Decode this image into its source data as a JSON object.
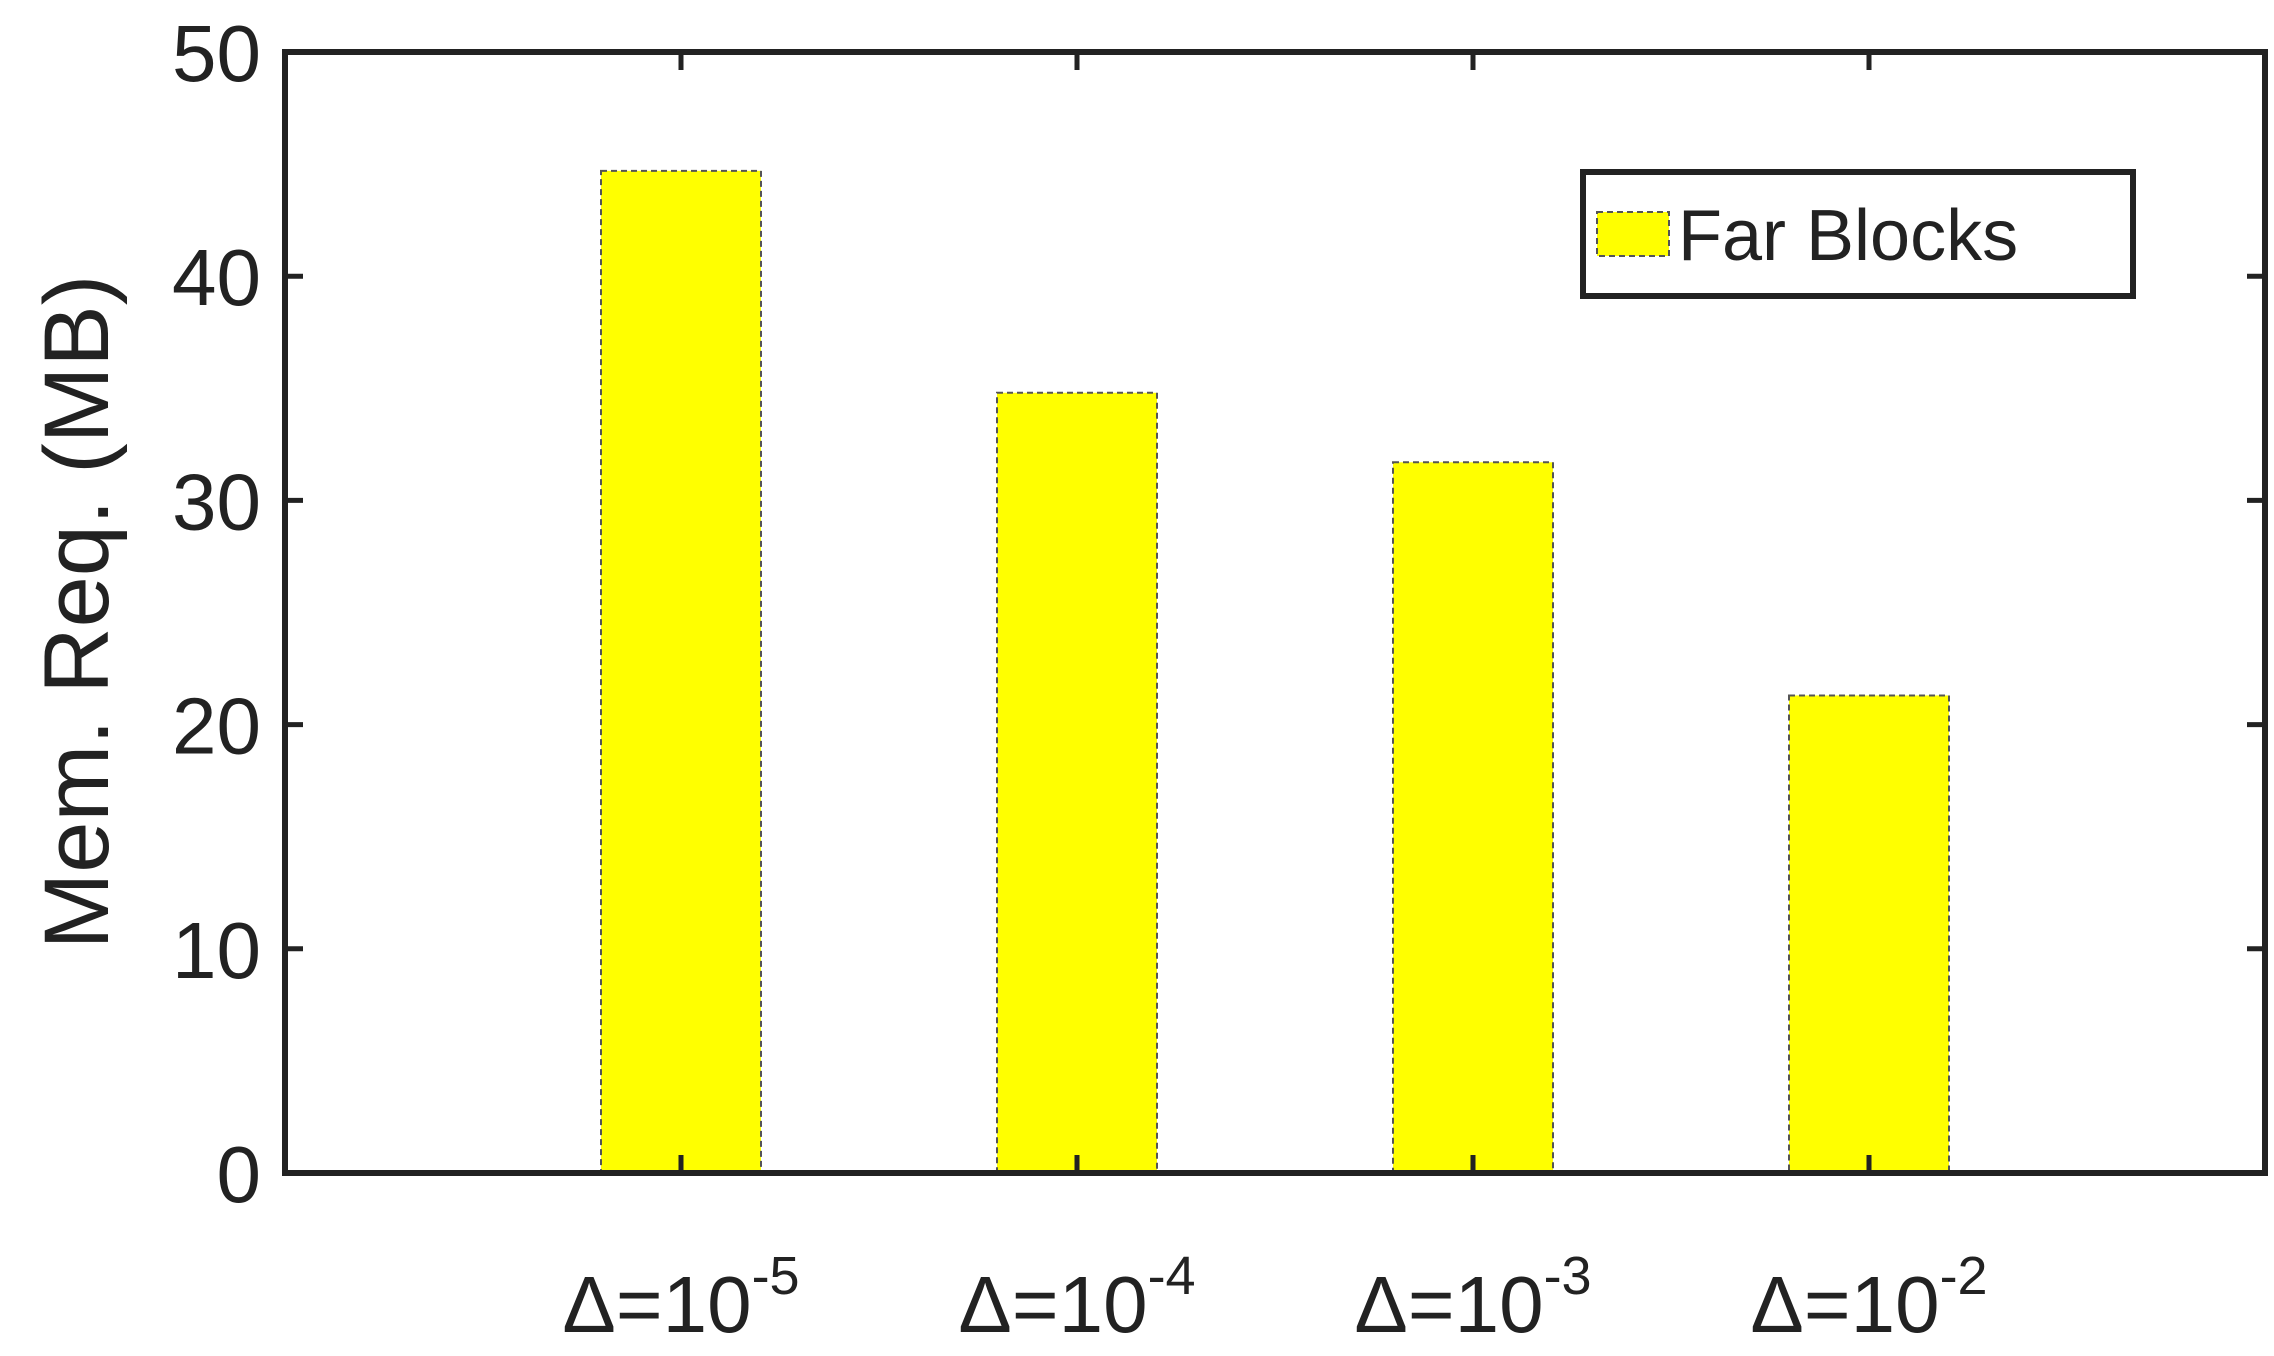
{
  "chart_data": {
    "type": "bar",
    "title": "",
    "xlabel": "",
    "ylabel": "Mem. Req. (MB)",
    "ylim": [
      0,
      50
    ],
    "yticks": [
      "0",
      "10",
      "20",
      "30",
      "40",
      "50"
    ],
    "categories": [
      {
        "base": "Δ=10",
        "exp": "-5"
      },
      {
        "base": "Δ=10",
        "exp": "-4"
      },
      {
        "base": "Δ=10",
        "exp": "-3"
      },
      {
        "base": "Δ=10",
        "exp": "-2"
      }
    ],
    "series": [
      {
        "name": "Far Blocks",
        "color": "#ffff00",
        "edge_color": "#555555",
        "values": [
          44.7,
          34.8,
          31.7,
          21.3
        ]
      }
    ],
    "grid": false,
    "legend_position": "top-right"
  }
}
